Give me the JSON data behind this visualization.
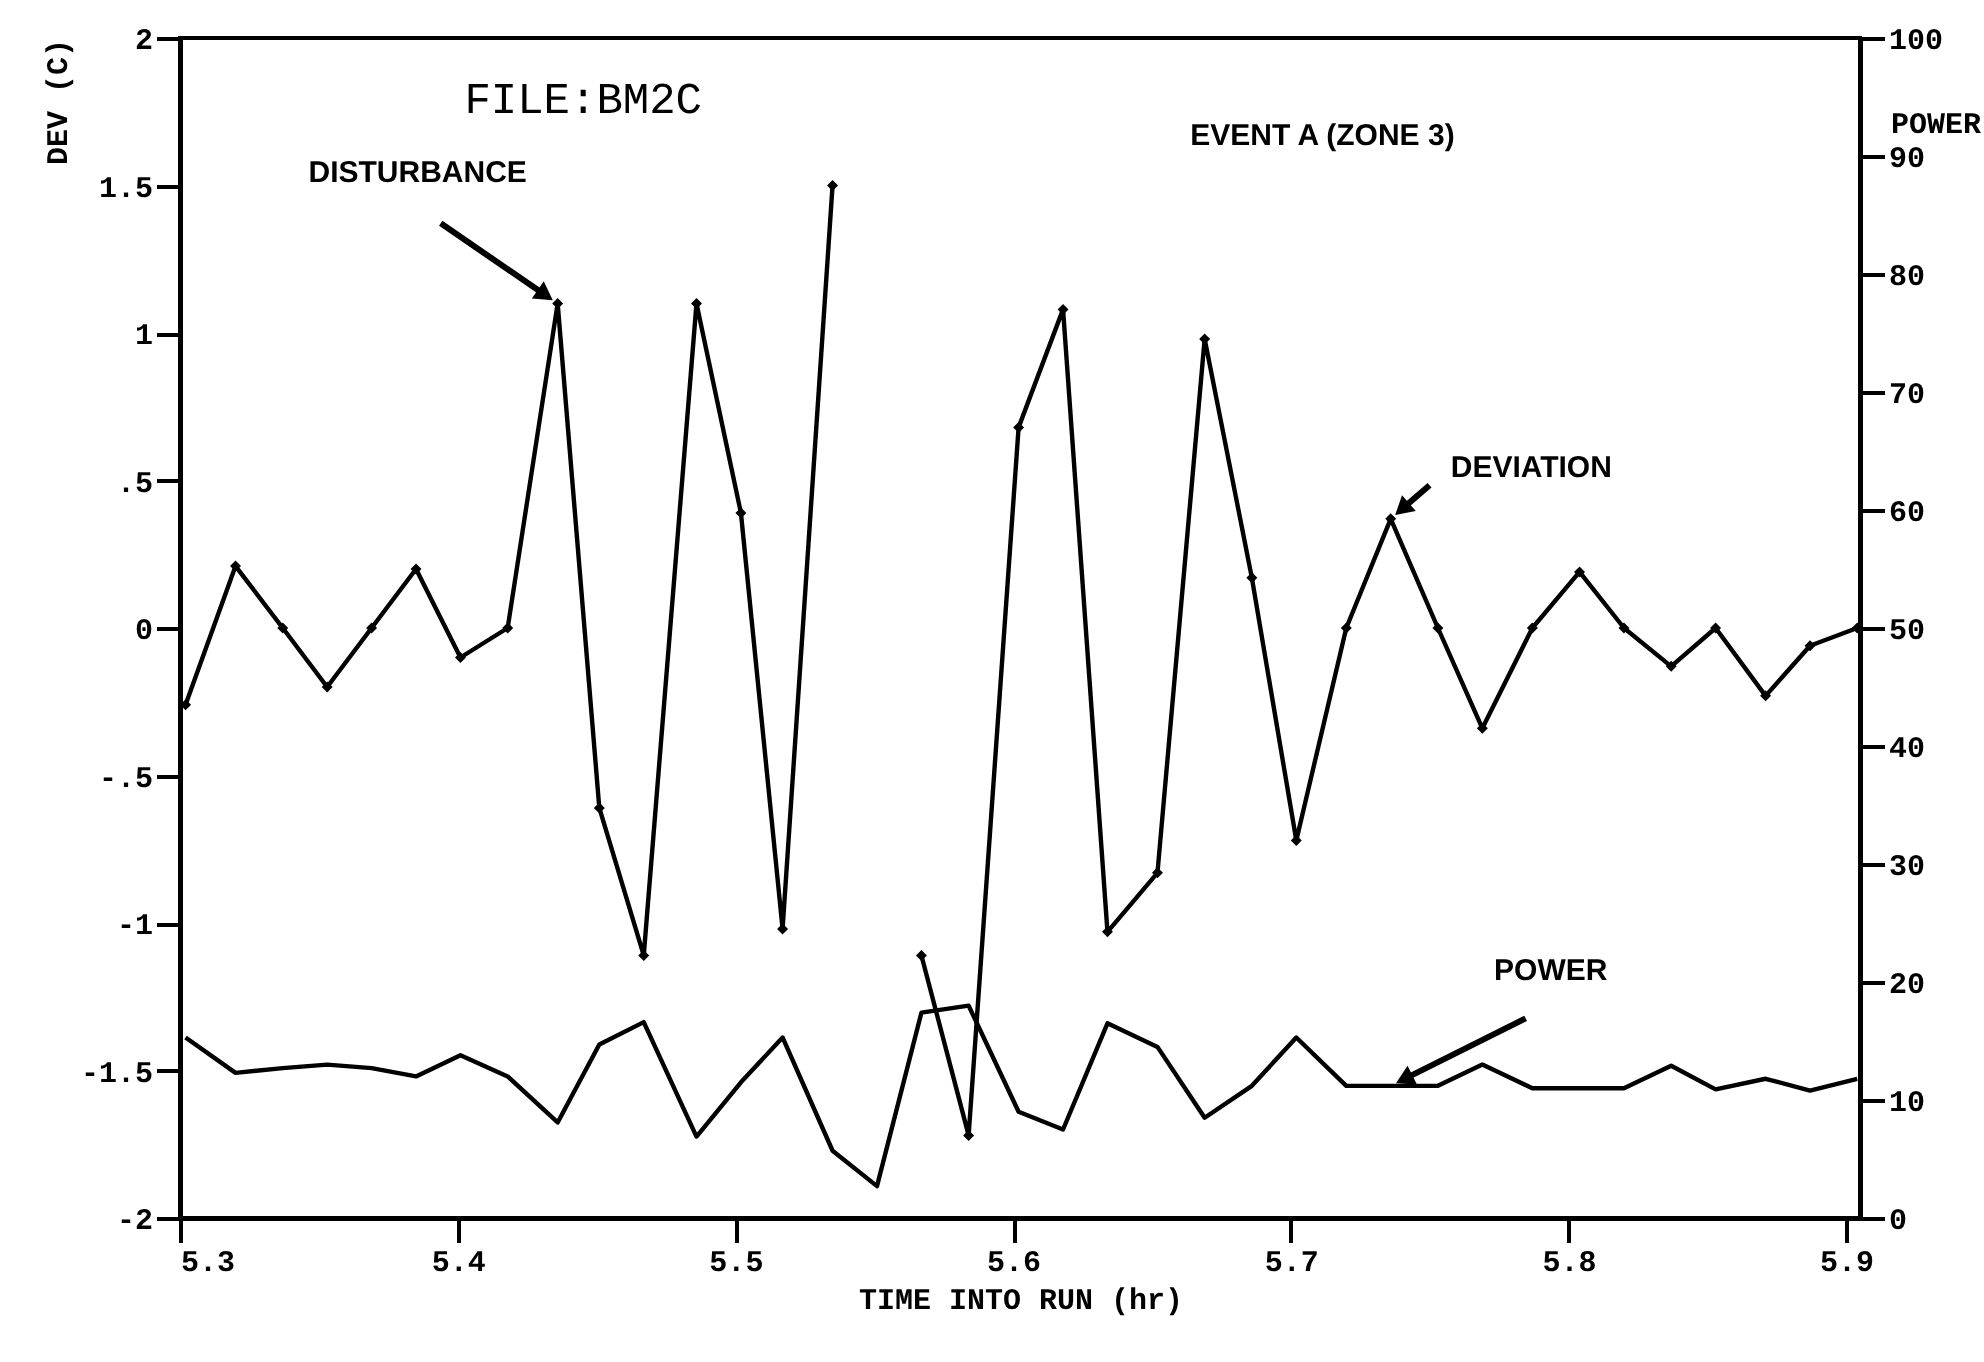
{
  "chart_data": {
    "type": "line",
    "xlabel": "TIME INTO RUN (hr)",
    "ylabel": "DEV (C)",
    "y2label": "POWER",
    "annotations": [
      "FILE:BM2C",
      "EVENT A (ZONE 3)",
      {
        "text": "DISTURBANCE",
        "x": 5.436,
        "y": 1.1
      }
    ],
    "x": [
      5.302,
      5.32,
      5.337,
      5.353,
      5.369,
      5.385,
      5.401,
      5.418,
      5.436,
      5.451,
      5.467,
      5.486,
      5.502,
      5.517,
      5.535,
      5.551,
      5.567,
      5.584,
      5.602,
      5.618,
      5.634,
      5.652,
      5.669,
      5.686,
      5.702,
      5.72,
      5.736,
      5.753,
      5.769,
      5.787,
      5.804,
      5.82,
      5.837,
      5.853,
      5.871,
      5.887,
      5.904
    ],
    "series": [
      {
        "name": "DEVIATION",
        "color": "#000000",
        "marker": "diamond",
        "values": [
          -0.26,
          0.21,
          0,
          -0.2,
          0,
          0.2,
          -0.1,
          0,
          1.1,
          -0.61,
          -1.11,
          1.1,
          0.39,
          -1.02,
          1.5,
          null,
          -1.11,
          -1.72,
          0.68,
          1.08,
          -1.03,
          -0.83,
          0.98,
          0.17,
          -0.72,
          0,
          0.37,
          0,
          -0.34,
          0,
          0.19,
          0,
          -0.13,
          0,
          -0.23,
          -0.06,
          0
        ]
      },
      {
        "name": "POWER",
        "color": "#000000",
        "axis": "y2",
        "values": [
          15.3,
          12.3,
          12.7,
          13,
          12.7,
          12,
          13.8,
          12,
          8.1,
          14.7,
          16.6,
          6.9,
          11.5,
          15.3,
          5.7,
          2.7,
          17.4,
          18,
          9,
          7.5,
          16.5,
          14.5,
          8.5,
          11.2,
          15.3,
          11.2,
          11.2,
          11.2,
          13,
          11,
          11,
          11,
          12.9,
          10.9,
          11.8,
          10.8,
          11.8
        ]
      }
    ],
    "xlim": [
      5.3,
      5.905
    ],
    "xticks": [
      5.3,
      5.4,
      5.5,
      5.6,
      5.7,
      5.8,
      5.9
    ],
    "ylim": [
      -2,
      2
    ],
    "yticks": [
      -2,
      -1.5,
      -1,
      {
        "value": -0.5,
        "label": "-.5"
      },
      0,
      {
        "value": 0.5,
        "label": ".5"
      },
      1,
      1.5,
      2
    ],
    "y2lim": [
      0,
      100
    ],
    "y2ticks": [
      0,
      10,
      20,
      30,
      40,
      50,
      60,
      70,
      80,
      90,
      100
    ]
  }
}
